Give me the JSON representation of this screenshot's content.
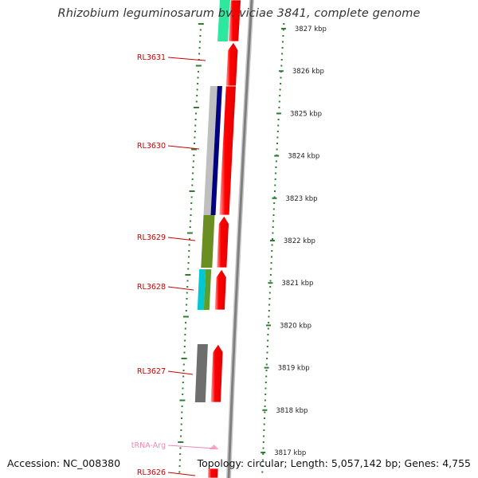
{
  "title": "Rhizobium leguminosarum bv. viciae 3841, complete genome",
  "footer": {
    "accession": "Accession: NC_008380",
    "topology": "Topology: circular; Length: 5,057,142 bp; Genes: 4,755"
  },
  "scale_ticks": [
    {
      "label": "3827 kbp",
      "kbp": 3827
    },
    {
      "label": "3826 kbp",
      "kbp": 3826
    },
    {
      "label": "3825 kbp",
      "kbp": 3825
    },
    {
      "label": "3824 kbp",
      "kbp": 3824
    },
    {
      "label": "3823 kbp",
      "kbp": 3823
    },
    {
      "label": "3822 kbp",
      "kbp": 3822
    },
    {
      "label": "3821 kbp",
      "kbp": 3821
    },
    {
      "label": "3820 kbp",
      "kbp": 3820
    },
    {
      "label": "3819 kbp",
      "kbp": 3819
    },
    {
      "label": "3818 kbp",
      "kbp": 3818
    },
    {
      "label": "3817 kbp",
      "kbp": 3817
    }
  ],
  "gene_labels": [
    {
      "text": "RL3631",
      "color": "#cc0000"
    },
    {
      "text": "RL3630",
      "color": "#cc0000"
    },
    {
      "text": "RL3629",
      "color": "#cc0000"
    },
    {
      "text": "RL3628",
      "color": "#cc0000"
    },
    {
      "text": "RL3627",
      "color": "#cc0000"
    },
    {
      "text": "tRNA-Arg",
      "color": "#ee88b4"
    },
    {
      "text": "RL3626",
      "color": "#cc0000"
    }
  ],
  "colors": {
    "cds": "#ff0000",
    "trna": "#f9a7c6",
    "backbone": "#808080",
    "tick": "#2e7d32",
    "cog_cyan": "#00c8d2",
    "cog_olive": "#6b8e23",
    "cog_green": "#5aa02c",
    "cog_navy": "#000080",
    "cog_gray": "#6e6e6e",
    "cog_lightgray": "#bfbfbf",
    "cog_mint": "#2ee8a0"
  }
}
